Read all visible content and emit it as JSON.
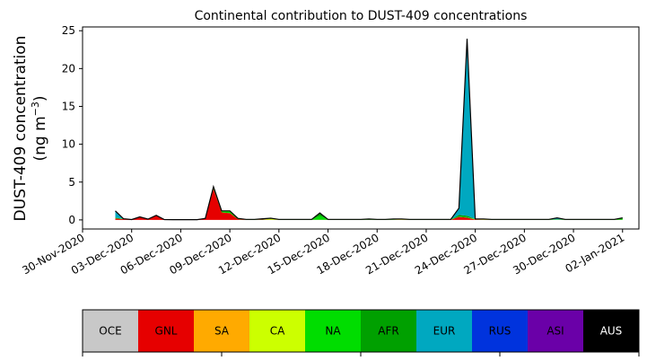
{
  "chart_data": {
    "type": "area",
    "title": "Continental contribution to DUST-409 concentrations",
    "ylabel_line1": "DUST-409 concentration",
    "ylabel_line2": "(ng m",
    "ylabel_unit_exp": "−3",
    "ylabel_close": ")",
    "ylim": [
      -1.2,
      25.5
    ],
    "yticks": [
      0,
      5,
      10,
      15,
      20,
      25
    ],
    "x_start": "2020-11-30",
    "x_end": "2021-01-03",
    "xticks": [
      {
        "date": "2020-11-30",
        "label": "30-Nov-2020"
      },
      {
        "date": "2020-12-03",
        "label": "03-Dec-2020"
      },
      {
        "date": "2020-12-06",
        "label": "06-Dec-2020"
      },
      {
        "date": "2020-12-09",
        "label": "09-Dec-2020"
      },
      {
        "date": "2020-12-12",
        "label": "12-Dec-2020"
      },
      {
        "date": "2020-12-15",
        "label": "15-Dec-2020"
      },
      {
        "date": "2020-12-18",
        "label": "18-Dec-2020"
      },
      {
        "date": "2020-12-21",
        "label": "21-Dec-2020"
      },
      {
        "date": "2020-12-24",
        "label": "24-Dec-2020"
      },
      {
        "date": "2020-12-27",
        "label": "27-Dec-2020"
      },
      {
        "date": "2020-12-30",
        "label": "30-Dec-2020"
      },
      {
        "date": "2021-01-02",
        "label": "02-Jan-2021"
      }
    ],
    "x": [
      "2020-12-02T00:00",
      "2020-12-02T12:00",
      "2020-12-03T00:00",
      "2020-12-03T12:00",
      "2020-12-04T00:00",
      "2020-12-04T12:00",
      "2020-12-05T00:00",
      "2020-12-05T12:00",
      "2020-12-06T00:00",
      "2020-12-06T12:00",
      "2020-12-07T00:00",
      "2020-12-07T12:00",
      "2020-12-08T00:00",
      "2020-12-08T12:00",
      "2020-12-09T00:00",
      "2020-12-09T12:00",
      "2020-12-10T00:00",
      "2020-12-10T12:00",
      "2020-12-11T00:00",
      "2020-12-11T12:00",
      "2020-12-12T00:00",
      "2020-12-12T12:00",
      "2020-12-13T00:00",
      "2020-12-13T12:00",
      "2020-12-14T00:00",
      "2020-12-14T12:00",
      "2020-12-15T00:00",
      "2020-12-15T12:00",
      "2020-12-16T00:00",
      "2020-12-16T12:00",
      "2020-12-17T00:00",
      "2020-12-17T12:00",
      "2020-12-18T00:00",
      "2020-12-18T12:00",
      "2020-12-19T00:00",
      "2020-12-19T12:00",
      "2020-12-20T00:00",
      "2020-12-20T12:00",
      "2020-12-21T00:00",
      "2020-12-21T12:00",
      "2020-12-22T00:00",
      "2020-12-22T12:00",
      "2020-12-23T00:00",
      "2020-12-23T12:00",
      "2020-12-24T00:00",
      "2020-12-24T12:00",
      "2020-12-25T00:00",
      "2020-12-25T12:00",
      "2020-12-26T00:00",
      "2020-12-26T12:00",
      "2020-12-27T00:00",
      "2020-12-27T12:00",
      "2020-12-28T00:00",
      "2020-12-28T12:00",
      "2020-12-29T00:00",
      "2020-12-29T12:00",
      "2020-12-30T00:00",
      "2020-12-30T12:00",
      "2020-12-31T00:00",
      "2020-12-31T12:00",
      "2021-01-01T00:00",
      "2021-01-01T12:00",
      "2021-01-02T00:00"
    ],
    "series": [
      {
        "name": "OCE",
        "color": "#c8c8c8",
        "values": [
          0,
          0,
          0,
          0,
          0,
          0,
          0,
          0,
          0,
          0,
          0,
          0,
          0,
          0,
          0,
          0,
          0,
          0,
          0,
          0,
          0,
          0,
          0,
          0,
          0,
          0,
          0,
          0,
          0,
          0,
          0,
          0,
          0,
          0,
          0,
          0,
          0,
          0,
          0,
          0,
          0,
          0,
          0,
          0,
          0,
          0,
          0,
          0,
          0,
          0,
          0,
          0,
          0,
          0,
          0,
          0,
          0,
          0,
          0,
          0,
          0,
          0,
          0
        ]
      },
      {
        "name": "GNL",
        "color": "#e60000",
        "values": [
          0.2,
          0.1,
          0.05,
          0.4,
          0.1,
          0.6,
          0.05,
          0.03,
          0.03,
          0.03,
          0.03,
          0.2,
          4.1,
          1.0,
          0.9,
          0.1,
          0.02,
          0.02,
          0.05,
          0.02,
          0.02,
          0.02,
          0.02,
          0.02,
          0.02,
          0.02,
          0.02,
          0.02,
          0.02,
          0.02,
          0.02,
          0.02,
          0.02,
          0.02,
          0.02,
          0.02,
          0.02,
          0.02,
          0.02,
          0.02,
          0.02,
          0.02,
          0.4,
          0.3,
          0.05,
          0.02,
          0.02,
          0.02,
          0.02,
          0.02,
          0.02,
          0.02,
          0.02,
          0.02,
          0.02,
          0.02,
          0.02,
          0.02,
          0.02,
          0.02,
          0.02,
          0.02,
          0.02
        ]
      },
      {
        "name": "SA",
        "color": "#ffaa00",
        "values": [
          0,
          0,
          0,
          0,
          0,
          0,
          0,
          0,
          0,
          0,
          0,
          0,
          0,
          0,
          0,
          0,
          0,
          0,
          0,
          0,
          0,
          0,
          0,
          0,
          0,
          0,
          0,
          0,
          0,
          0,
          0,
          0,
          0,
          0,
          0,
          0,
          0,
          0,
          0,
          0,
          0,
          0,
          0,
          0,
          0,
          0,
          0,
          0,
          0,
          0,
          0,
          0,
          0,
          0,
          0,
          0,
          0,
          0,
          0,
          0,
          0,
          0,
          0
        ]
      },
      {
        "name": "CA",
        "color": "#ccff00",
        "values": [
          0,
          0,
          0,
          0,
          0,
          0,
          0,
          0,
          0,
          0,
          0,
          0,
          0,
          0,
          0,
          0,
          0,
          0,
          0,
          0.15,
          0,
          0,
          0,
          0,
          0,
          0,
          0,
          0,
          0,
          0,
          0,
          0,
          0,
          0,
          0,
          0.05,
          0,
          0,
          0,
          0,
          0,
          0,
          0,
          0,
          0.03,
          0.05,
          0,
          0,
          0,
          0,
          0,
          0,
          0,
          0,
          0,
          0,
          0,
          0,
          0,
          0,
          0,
          0,
          0
        ]
      },
      {
        "name": "NA",
        "color": "#00dd00",
        "values": [
          0.1,
          0.05,
          0,
          0,
          0,
          0,
          0,
          0,
          0,
          0,
          0,
          0,
          0.3,
          0.2,
          0.3,
          0.1,
          0.05,
          0.05,
          0.1,
          0.05,
          0.05,
          0.05,
          0.05,
          0.05,
          0.05,
          0.5,
          0.05,
          0.05,
          0.05,
          0.05,
          0.05,
          0.1,
          0.05,
          0.05,
          0.1,
          0.05,
          0.05,
          0.05,
          0.05,
          0.05,
          0.05,
          0.05,
          0.05,
          0.05,
          0.05,
          0.05,
          0.05,
          0.05,
          0.05,
          0.05,
          0.05,
          0.05,
          0.05,
          0.05,
          0.05,
          0.05,
          0.05,
          0.05,
          0.05,
          0.05,
          0.05,
          0.05,
          0.2
        ]
      },
      {
        "name": "AFR",
        "color": "#00a000",
        "values": [
          0,
          0,
          0,
          0,
          0,
          0,
          0,
          0,
          0,
          0,
          0,
          0,
          0,
          0,
          0,
          0,
          0,
          0,
          0,
          0,
          0,
          0,
          0,
          0,
          0,
          0.4,
          0,
          0,
          0,
          0,
          0,
          0,
          0,
          0,
          0,
          0,
          0,
          0,
          0,
          0,
          0,
          0,
          0.2,
          0.2,
          0,
          0,
          0,
          0,
          0,
          0,
          0,
          0,
          0,
          0,
          0,
          0,
          0,
          0,
          0,
          0,
          0,
          0,
          0.05
        ]
      },
      {
        "name": "EUR",
        "color": "#00a8c0",
        "values": [
          0.9,
          0,
          0,
          0,
          0,
          0,
          0,
          0,
          0,
          0,
          0,
          0,
          0,
          0,
          0,
          0,
          0,
          0,
          0,
          0,
          0,
          0,
          0,
          0,
          0,
          0,
          0,
          0,
          0,
          0,
          0,
          0,
          0,
          0,
          0,
          0,
          0,
          0,
          0,
          0,
          0,
          0,
          0.9,
          23.4,
          0,
          0,
          0,
          0,
          0,
          0,
          0,
          0,
          0,
          0,
          0.2,
          0,
          0,
          0,
          0,
          0,
          0,
          0,
          0
        ]
      },
      {
        "name": "RUS",
        "color": "#0033dd",
        "values": [
          0,
          0,
          0,
          0,
          0,
          0,
          0,
          0,
          0,
          0,
          0,
          0,
          0,
          0,
          0,
          0,
          0,
          0,
          0,
          0,
          0,
          0,
          0,
          0,
          0,
          0,
          0,
          0,
          0,
          0,
          0,
          0,
          0,
          0,
          0,
          0,
          0,
          0,
          0,
          0,
          0,
          0,
          0,
          0,
          0,
          0,
          0,
          0,
          0,
          0,
          0,
          0,
          0,
          0,
          0,
          0,
          0,
          0,
          0,
          0,
          0,
          0,
          0
        ]
      },
      {
        "name": "ASI",
        "color": "#6a00a8",
        "values": [
          0,
          0,
          0,
          0,
          0,
          0,
          0,
          0,
          0,
          0,
          0,
          0,
          0,
          0,
          0,
          0,
          0,
          0,
          0,
          0,
          0,
          0,
          0,
          0,
          0,
          0,
          0,
          0,
          0,
          0,
          0,
          0,
          0,
          0,
          0,
          0,
          0,
          0,
          0,
          0,
          0,
          0,
          0,
          0,
          0,
          0,
          0,
          0,
          0,
          0,
          0,
          0,
          0,
          0,
          0,
          0,
          0,
          0,
          0,
          0,
          0,
          0,
          0
        ]
      },
      {
        "name": "AUS",
        "color": "#000000",
        "values": [
          0,
          0,
          0,
          0,
          0,
          0,
          0,
          0,
          0,
          0,
          0,
          0,
          0,
          0,
          0,
          0,
          0,
          0,
          0,
          0,
          0,
          0,
          0,
          0,
          0,
          0,
          0,
          0,
          0,
          0,
          0,
          0,
          0,
          0,
          0,
          0,
          0,
          0,
          0,
          0,
          0,
          0,
          0,
          0,
          0,
          0,
          0,
          0,
          0,
          0,
          0,
          0,
          0,
          0,
          0,
          0,
          0,
          0,
          0,
          0,
          0,
          0,
          0
        ]
      }
    ],
    "legend": [
      {
        "label": "OCE",
        "color": "#c8c8c8",
        "text_color": "#000000"
      },
      {
        "label": "GNL",
        "color": "#e60000",
        "text_color": "#000000"
      },
      {
        "label": "SA",
        "color": "#ffaa00",
        "text_color": "#000000"
      },
      {
        "label": "CA",
        "color": "#ccff00",
        "text_color": "#000000"
      },
      {
        "label": "NA",
        "color": "#00dd00",
        "text_color": "#000000"
      },
      {
        "label": "AFR",
        "color": "#00a000",
        "text_color": "#000000"
      },
      {
        "label": "EUR",
        "color": "#00a8c0",
        "text_color": "#000000"
      },
      {
        "label": "RUS",
        "color": "#0033dd",
        "text_color": "#000000"
      },
      {
        "label": "ASI",
        "color": "#6a00a8",
        "text_color": "#000000"
      },
      {
        "label": "AUS",
        "color": "#000000",
        "text_color": "#ffffff"
      }
    ],
    "legend_placement": "bottom",
    "grid": false
  }
}
